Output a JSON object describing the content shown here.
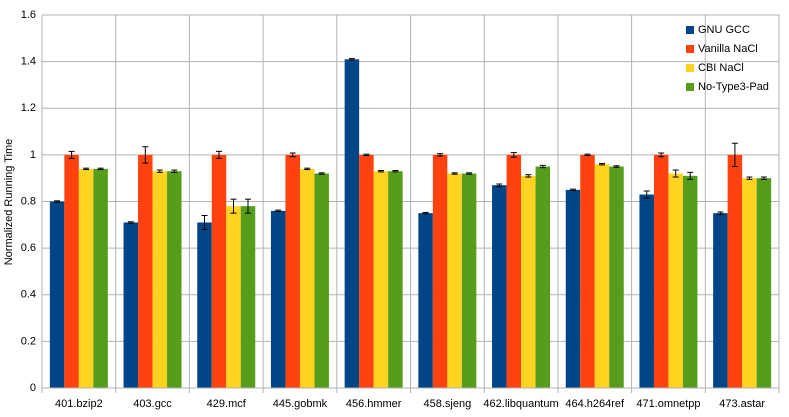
{
  "chart_data": {
    "type": "bar",
    "y_label": "Normalized Running Time",
    "categories": [
      "401.bzip2",
      "403.gcc",
      "429.mcf",
      "445.gobmk",
      "456.hmmer",
      "458.sjeng",
      "462.libquantum",
      "464.h264ref",
      "471.omnetpp",
      "473.astar"
    ],
    "series": [
      {
        "name": "GNU GCC",
        "color": "#004586",
        "values": [
          0.8,
          0.71,
          0.71,
          0.76,
          1.41,
          0.75,
          0.87,
          0.85,
          0.83,
          0.75
        ],
        "errors": [
          0.003,
          0.003,
          0.03,
          0.003,
          0.003,
          0.003,
          0.005,
          0.003,
          0.015,
          0.005
        ]
      },
      {
        "name": "Vanilla NaCl",
        "color": "#ff420e",
        "values": [
          1.0,
          1.0,
          1.0,
          1.0,
          1.0,
          1.0,
          1.0,
          1.0,
          1.0,
          1.0
        ],
        "errors": [
          0.015,
          0.035,
          0.015,
          0.008,
          0.003,
          0.005,
          0.01,
          0.003,
          0.008,
          0.05
        ]
      },
      {
        "name": "CBI NaCl",
        "color": "#ffd320",
        "values": [
          0.94,
          0.93,
          0.78,
          0.94,
          0.93,
          0.92,
          0.91,
          0.96,
          0.92,
          0.9
        ],
        "errors": [
          0.003,
          0.005,
          0.03,
          0.003,
          0.003,
          0.003,
          0.005,
          0.003,
          0.015,
          0.005
        ]
      },
      {
        "name": "No-Type3-Pad",
        "color": "#579d1c",
        "values": [
          0.94,
          0.93,
          0.78,
          0.92,
          0.93,
          0.92,
          0.95,
          0.95,
          0.91,
          0.9
        ],
        "errors": [
          0.003,
          0.005,
          0.03,
          0.003,
          0.003,
          0.003,
          0.005,
          0.003,
          0.015,
          0.005
        ]
      }
    ],
    "ylim": [
      0,
      1.6
    ],
    "yticks": [
      0,
      0.2,
      0.4,
      0.6,
      0.8,
      1,
      1.2,
      1.4,
      1.6
    ],
    "grid": true,
    "legend": "top-right"
  }
}
